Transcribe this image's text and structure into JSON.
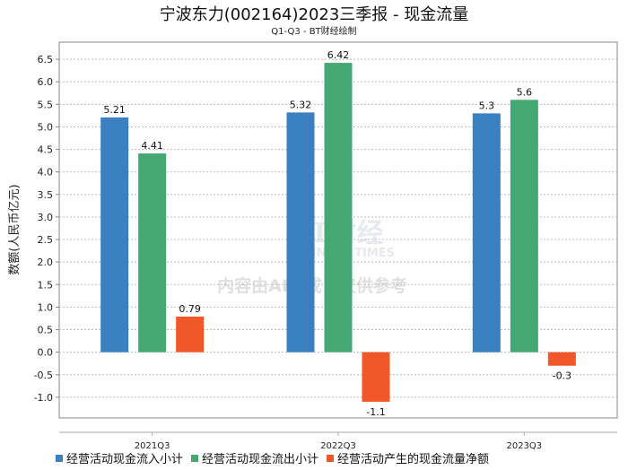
{
  "chart_data": {
    "type": "bar",
    "title": "宁波东力(002164)2023三季报 - 现金流量",
    "subtitle": "Q1-Q3 - BT财经绘制",
    "xlabel": "",
    "ylabel": "数额(人民币亿元)",
    "categories": [
      "2021Q3",
      "2022Q3",
      "2023Q3"
    ],
    "series": [
      {
        "name": "经营活动现金流入小计",
        "color": "#3a80c0",
        "values": [
          5.21,
          5.32,
          5.3
        ]
      },
      {
        "name": "经营活动现金流出小计",
        "color": "#45a873",
        "values": [
          4.41,
          6.42,
          5.6
        ]
      },
      {
        "name": "经营活动产生的现金流量净额",
        "color": "#f0582a",
        "values": [
          0.79,
          -1.1,
          -0.3
        ]
      }
    ],
    "ylim": [
      -1.46,
      6.88
    ],
    "yticks": [
      -1.0,
      -0.5,
      0.0,
      0.5,
      1.0,
      1.5,
      2.0,
      2.5,
      3.0,
      3.5,
      4.0,
      4.5,
      5.0,
      5.5,
      6.0,
      6.5
    ],
    "grid": true,
    "legend": "bottom"
  },
  "watermark": {
    "brand": "BT财经",
    "brand_en": "BUSINESS TIMES",
    "notice": "内容由AI生成，仅供参考"
  }
}
